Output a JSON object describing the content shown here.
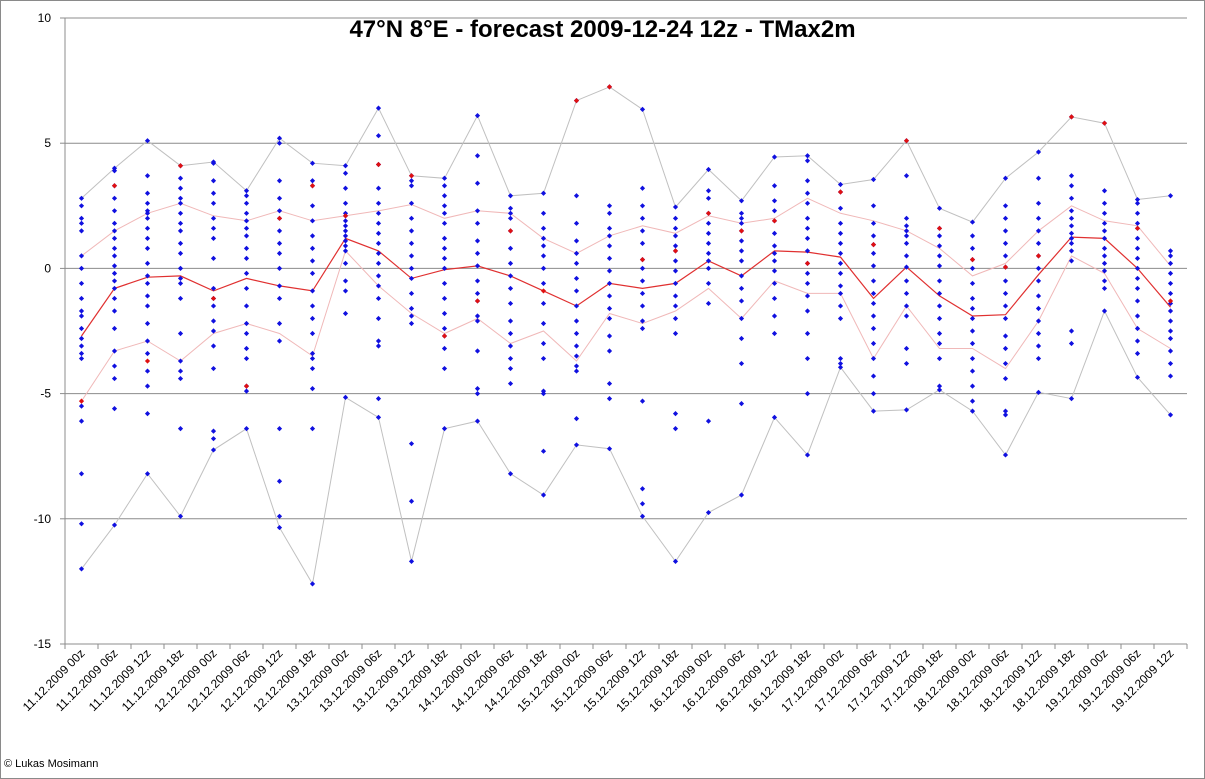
{
  "chart_data": {
    "type": "scatter",
    "title": "47°N 8°E - forecast  2009-12-24 12z - TMax2m",
    "copyright": "© Lukas Mosimann",
    "ylim": [
      -15,
      10
    ],
    "yticks": [
      -15,
      -10,
      -5,
      0,
      5,
      10
    ],
    "grid": true,
    "categories": [
      "11.12.2009 00z",
      "11.12.2009 06z",
      "11.12.2009 12z",
      "11.12.2009 18z",
      "12.12.2009 00z",
      "12.12.2009 06z",
      "12.12.2009 12z",
      "12.12.2009 18z",
      "13.12.2009 00z",
      "13.12.2009 06z",
      "13.12.2009 12z",
      "13.12.2009 18z",
      "14.12.2009 00z",
      "14.12.2009 06z",
      "14.12.2009 18z",
      "15.12.2009 00z",
      "15.12.2009 06z",
      "15.12.2009 12z",
      "15.12.2009 18z",
      "16.12.2009 00z",
      "16.12.2009 06z",
      "16.12.2009 12z",
      "16.12.2009 18z",
      "17.12.2009 00z",
      "17.12.2009 06z",
      "17.12.2009 12z",
      "17.12.2009 18z",
      "18.12.2009 00z",
      "18.12.2009 06z",
      "18.12.2009 12z",
      "18.12.2009 18z",
      "19.12.2009 00z",
      "19.12.2009 06z",
      "19.12.2009 12z"
    ],
    "line_series": [
      {
        "role": "mean",
        "color": "#e03030",
        "width": 1.2,
        "values": [
          -2.7,
          -0.8,
          -0.35,
          -0.3,
          -0.9,
          -0.4,
          -0.7,
          -0.9,
          1.2,
          0.7,
          -0.4,
          -0.05,
          0.1,
          -0.3,
          -0.9,
          -1.5,
          -0.6,
          -0.8,
          -0.6,
          0.3,
          -0.3,
          0.7,
          0.65,
          0.45,
          -1.2,
          0.05,
          -1.1,
          -1.9,
          -1.85,
          -0.25,
          1.25,
          1.2,
          0.0,
          -1.55
        ]
      },
      {
        "role": "upper-spread",
        "color": "#f0b8b8",
        "width": 1.0,
        "values": [
          0.5,
          1.5,
          2.2,
          2.6,
          2.1,
          1.9,
          2.3,
          1.9,
          2.1,
          2.3,
          2.55,
          2.0,
          2.3,
          2.2,
          1.2,
          0.6,
          1.3,
          1.7,
          1.4,
          2.1,
          1.8,
          2.0,
          2.8,
          2.2,
          1.9,
          1.5,
          0.8,
          -0.3,
          0.2,
          1.5,
          2.5,
          1.9,
          1.7,
          0.1
        ]
      },
      {
        "role": "lower-spread",
        "color": "#f0b8b8",
        "width": 1.0,
        "values": [
          -5.3,
          -3.3,
          -2.9,
          -3.7,
          -2.6,
          -2.2,
          -2.6,
          -3.5,
          0.7,
          -0.7,
          -1.8,
          -2.6,
          -2.0,
          -3.0,
          -2.5,
          -3.7,
          -1.8,
          -2.2,
          -1.7,
          -0.8,
          -2.0,
          -0.5,
          -1.0,
          -1.0,
          -3.6,
          -1.5,
          -3.2,
          -3.2,
          -4.0,
          -2.1,
          0.5,
          -0.2,
          -2.4,
          -3.2
        ]
      },
      {
        "role": "max",
        "color": "#c0c0c0",
        "width": 1.0,
        "values": [
          2.8,
          4.0,
          5.1,
          4.1,
          4.25,
          3.1,
          5.2,
          4.2,
          4.1,
          6.4,
          3.7,
          3.6,
          6.1,
          2.9,
          3.0,
          6.7,
          7.25,
          6.35,
          2.45,
          3.95,
          2.7,
          4.45,
          4.5,
          3.35,
          3.55,
          5.1,
          2.4,
          1.85,
          3.6,
          4.65,
          6.05,
          5.8,
          2.75,
          2.9
        ]
      },
      {
        "role": "min",
        "color": "#c0c0c0",
        "width": 1.0,
        "values": [
          -12.0,
          -10.25,
          -8.2,
          -9.9,
          -7.25,
          -6.4,
          -10.35,
          -12.6,
          -5.15,
          -5.95,
          -11.7,
          -6.4,
          -6.1,
          -8.2,
          -9.05,
          -7.05,
          -7.2,
          -9.9,
          -11.7,
          -9.75,
          -9.05,
          -5.95,
          -7.45,
          -3.95,
          -5.7,
          -5.65,
          -4.85,
          -5.7,
          -7.45,
          -4.95,
          -5.2,
          -1.7,
          -4.35,
          -5.85
        ]
      }
    ],
    "member_color": "#1010e0",
    "highlight_color": "#e01010",
    "highlight_values": [
      -5.3,
      3.3,
      -3.7,
      4.1,
      -1.2,
      -4.7,
      2.0,
      3.3,
      2.1,
      4.15,
      3.7,
      -2.7,
      -1.3,
      1.5,
      -0.9,
      6.7,
      7.25,
      0.35,
      0.7,
      2.2,
      1.5,
      1.9,
      0.2,
      3.05,
      0.95,
      5.1,
      1.6,
      0.35,
      0.05,
      0.5,
      6.05,
      5.8,
      1.6,
      -1.3
    ],
    "members": [
      [
        2.8,
        2.5,
        2.0,
        1.8,
        1.5,
        0.5,
        0.0,
        -0.6,
        -1.2,
        -1.7,
        -1.9,
        -2.4,
        -2.8,
        -3.1,
        -3.4,
        -3.6,
        -5.5,
        -6.1,
        -8.2,
        -10.2,
        -12.0
      ],
      [
        4.0,
        3.9,
        3.3,
        2.8,
        2.3,
        1.8,
        1.5,
        1.2,
        0.8,
        0.5,
        0.1,
        -0.2,
        -0.5,
        -0.8,
        -1.2,
        -1.7,
        -2.4,
        -3.3,
        -3.9,
        -4.4,
        -5.6,
        -10.25
      ],
      [
        5.1,
        3.7,
        3.0,
        2.6,
        2.3,
        2.2,
        2.0,
        1.6,
        1.2,
        0.8,
        0.2,
        -0.3,
        -0.6,
        -1.1,
        -1.5,
        -2.2,
        -2.9,
        -3.4,
        -4.1,
        -4.7,
        -5.8,
        -8.2
      ],
      [
        4.1,
        3.6,
        3.2,
        2.8,
        2.6,
        2.2,
        1.8,
        1.5,
        1.0,
        0.6,
        0.0,
        -0.4,
        -0.6,
        -1.2,
        -2.6,
        -3.7,
        -4.1,
        -4.4,
        -6.4,
        -9.9
      ],
      [
        4.25,
        4.2,
        3.5,
        3.0,
        2.6,
        2.0,
        1.6,
        1.2,
        0.4,
        -0.8,
        -1.2,
        -1.5,
        -2.1,
        -2.5,
        -3.1,
        -4.0,
        -6.5,
        -6.8,
        -7.25
      ],
      [
        3.1,
        2.9,
        2.6,
        2.2,
        1.9,
        1.6,
        1.3,
        0.8,
        0.4,
        -0.2,
        -0.8,
        -1.5,
        -2.2,
        -2.6,
        -3.2,
        -3.6,
        -4.7,
        -4.9,
        -6.4
      ],
      [
        5.2,
        5.0,
        3.5,
        2.8,
        2.3,
        2.0,
        1.5,
        1.0,
        0.6,
        0.0,
        -0.7,
        -1.2,
        -2.2,
        -2.9,
        -6.4,
        -8.5,
        -9.9,
        -10.35
      ],
      [
        4.2,
        3.5,
        3.3,
        2.5,
        1.9,
        1.3,
        0.8,
        0.3,
        -0.2,
        -0.9,
        -1.5,
        -2.0,
        -2.6,
        -3.4,
        -3.6,
        -4.0,
        -4.8,
        -6.4,
        -12.6
      ],
      [
        4.1,
        3.8,
        3.2,
        2.6,
        2.2,
        2.1,
        1.9,
        1.7,
        1.5,
        1.3,
        1.1,
        0.9,
        0.7,
        0.2,
        -0.5,
        -0.9,
        -1.8,
        -5.15
      ],
      [
        6.4,
        5.3,
        4.15,
        3.2,
        2.6,
        2.2,
        1.8,
        1.4,
        1.0,
        0.6,
        0.2,
        -0.3,
        -0.7,
        -1.2,
        -2.0,
        -2.9,
        -3.1,
        -5.2,
        -5.95
      ],
      [
        3.7,
        3.5,
        3.3,
        2.6,
        2.0,
        1.5,
        1.0,
        0.5,
        0.0,
        -0.4,
        -1.0,
        -1.6,
        -1.9,
        -2.2,
        -7.0,
        -9.3,
        -11.7
      ],
      [
        3.6,
        3.3,
        2.9,
        2.5,
        2.2,
        1.8,
        1.2,
        0.8,
        0.4,
        0.0,
        -0.6,
        -1.2,
        -1.8,
        -2.4,
        -2.7,
        -3.2,
        -4.0,
        -6.4
      ],
      [
        6.1,
        4.5,
        3.4,
        2.3,
        1.8,
        1.1,
        0.6,
        0.1,
        -0.5,
        -1.0,
        -1.3,
        -1.9,
        -2.1,
        -3.3,
        -4.8,
        -5.0,
        -6.1
      ],
      [
        2.9,
        2.4,
        2.2,
        2.0,
        1.5,
        0.8,
        0.2,
        -0.3,
        -0.8,
        -1.4,
        -2.1,
        -2.6,
        -3.1,
        -3.6,
        -4.0,
        -4.6,
        -8.2
      ],
      [
        3.0,
        2.2,
        1.6,
        1.2,
        0.9,
        0.5,
        0.0,
        -0.6,
        -1.4,
        -2.2,
        -3.0,
        -3.6,
        -4.9,
        -5.0,
        -7.3,
        -9.05
      ],
      [
        6.7,
        2.9,
        1.8,
        1.1,
        0.6,
        0.2,
        -0.4,
        -0.9,
        -1.5,
        -2.1,
        -2.6,
        -3.1,
        -3.5,
        -3.9,
        -4.1,
        -6.0,
        -7.05
      ],
      [
        7.25,
        2.5,
        2.2,
        1.6,
        1.3,
        0.9,
        0.4,
        -0.1,
        -0.6,
        -1.1,
        -1.6,
        -2.0,
        -2.7,
        -3.3,
        -4.6,
        -5.2,
        -7.2
      ],
      [
        6.35,
        3.2,
        2.5,
        2.0,
        1.5,
        1.0,
        0.35,
        0.0,
        -0.5,
        -1.0,
        -1.5,
        -2.1,
        -2.4,
        -5.3,
        -8.8,
        -9.4,
        -9.9
      ],
      [
        2.45,
        2.0,
        1.6,
        1.3,
        0.9,
        0.7,
        0.3,
        -0.1,
        -0.6,
        -1.1,
        -1.5,
        -2.0,
        -2.6,
        -5.8,
        -6.4,
        -11.7
      ],
      [
        3.95,
        3.1,
        2.8,
        2.2,
        1.8,
        1.4,
        1.0,
        0.6,
        0.3,
        0.0,
        -0.6,
        -1.4,
        -6.1,
        -9.75
      ],
      [
        2.7,
        2.2,
        2.0,
        1.8,
        1.5,
        1.1,
        0.7,
        0.3,
        -0.3,
        -0.8,
        -1.3,
        -2.0,
        -2.8,
        -3.8,
        -5.4,
        -9.05
      ],
      [
        4.45,
        3.3,
        2.7,
        2.3,
        1.9,
        1.4,
        0.9,
        0.6,
        0.3,
        -0.1,
        -0.6,
        -1.2,
        -1.9,
        -2.6,
        -5.95
      ],
      [
        4.5,
        4.3,
        3.5,
        3.0,
        2.6,
        2.0,
        1.6,
        1.2,
        0.7,
        0.2,
        -0.2,
        -0.6,
        -1.1,
        -1.7,
        -2.6,
        -3.6,
        -5.0,
        -7.45
      ],
      [
        3.35,
        3.05,
        2.4,
        1.8,
        1.4,
        1.0,
        0.6,
        0.2,
        -0.2,
        -0.7,
        -1.0,
        -1.5,
        -2.0,
        -3.6,
        -3.8,
        -3.95
      ],
      [
        3.55,
        2.5,
        1.8,
        1.3,
        0.95,
        0.6,
        0.1,
        -0.5,
        -1.0,
        -1.4,
        -1.9,
        -2.4,
        -3.0,
        -3.6,
        -4.3,
        -5.0,
        -5.7
      ],
      [
        5.1,
        3.7,
        2.0,
        1.7,
        1.5,
        1.3,
        1.0,
        0.5,
        0.05,
        -0.5,
        -1.0,
        -1.5,
        -1.9,
        -3.2,
        -3.8,
        -5.65
      ],
      [
        2.4,
        1.6,
        1.3,
        0.9,
        0.5,
        0.1,
        -0.5,
        -1.0,
        -1.5,
        -2.0,
        -2.6,
        -3.0,
        -3.6,
        -4.7,
        -4.85
      ],
      [
        1.85,
        1.3,
        0.8,
        0.35,
        0.0,
        -0.6,
        -1.2,
        -1.6,
        -2.0,
        -2.5,
        -3.0,
        -3.6,
        -4.1,
        -4.7,
        -5.3,
        -5.7
      ],
      [
        3.6,
        2.5,
        2.0,
        1.5,
        1.0,
        0.5,
        0.05,
        -0.5,
        -1.0,
        -1.5,
        -2.0,
        -2.7,
        -3.2,
        -3.8,
        -4.4,
        -5.7,
        -5.85,
        -7.45
      ],
      [
        4.65,
        3.6,
        2.6,
        2.0,
        1.5,
        1.0,
        0.5,
        0.0,
        -0.5,
        -1.1,
        -1.6,
        -2.1,
        -2.6,
        -3.1,
        -3.6,
        -4.95
      ],
      [
        6.05,
        3.7,
        3.3,
        2.8,
        2.3,
        2.0,
        1.7,
        1.4,
        1.2,
        1.0,
        0.7,
        0.3,
        -2.5,
        -3.0,
        -5.2
      ],
      [
        5.8,
        3.1,
        2.6,
        2.2,
        1.8,
        1.5,
        1.2,
        0.8,
        0.5,
        0.2,
        -0.1,
        -0.5,
        -0.8,
        -1.7
      ],
      [
        2.75,
        2.6,
        2.2,
        1.8,
        1.6,
        1.2,
        0.8,
        0.4,
        0.0,
        -0.4,
        -0.8,
        -1.3,
        -1.9,
        -2.4,
        -2.9,
        -3.4,
        -4.35
      ],
      [
        2.9,
        0.7,
        0.5,
        0.2,
        -0.2,
        -0.6,
        -1.0,
        -1.4,
        -1.7,
        -2.1,
        -2.5,
        -2.8,
        -3.3,
        -3.8,
        -4.3,
        -5.85
      ]
    ]
  }
}
